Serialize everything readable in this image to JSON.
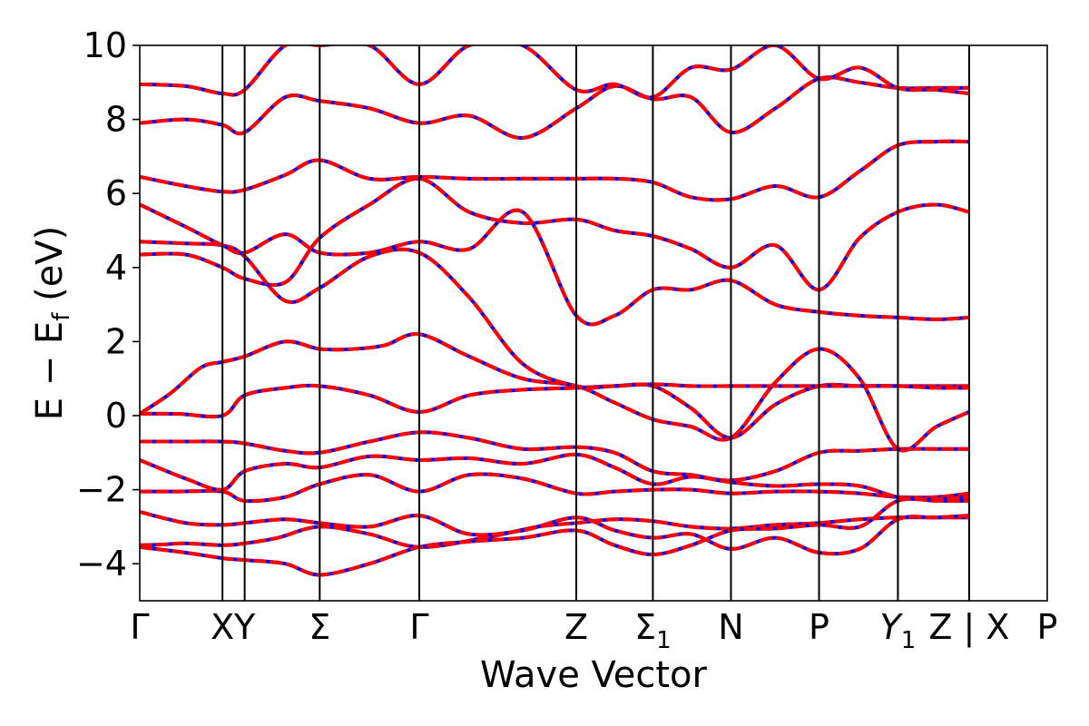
{
  "chart_data": {
    "type": "line",
    "xlabel": "Wave Vector",
    "ylabel": "E − E",
    "ylabel_sub": "f",
    "ylabel_unit": " (eV)",
    "ylim": [
      -5,
      10
    ],
    "yticks": [
      -4,
      -2,
      0,
      2,
      4,
      6,
      8,
      10
    ],
    "ytick_labels": [
      "−4",
      "−2",
      "0",
      "2",
      "4",
      "6",
      "8",
      "10"
    ],
    "grid": false,
    "colors": {
      "solid": "#ff0000",
      "dashed": "#0000ff"
    },
    "kpoints": [
      {
        "pos": 0,
        "label": "Γ",
        "sub": ""
      },
      {
        "pos": 1.08,
        "label": "X",
        "sub": ""
      },
      {
        "pos": 1.37,
        "label": "Y",
        "sub": ""
      },
      {
        "pos": 2.35,
        "label": "Σ",
        "sub": ""
      },
      {
        "pos": 3.65,
        "label": "Γ",
        "sub": ""
      },
      {
        "pos": 5.7,
        "label": "Z",
        "sub": ""
      },
      {
        "pos": 6.7,
        "label": "Σ",
        "sub": "1"
      },
      {
        "pos": 7.72,
        "label": "N",
        "sub": ""
      },
      {
        "pos": 8.87,
        "label": "P",
        "sub": ""
      },
      {
        "pos": 9.9,
        "label": "Y",
        "sub": "1",
        "italic": true
      },
      {
        "pos": 10.83,
        "label": "Z | X",
        "sub": ""
      },
      {
        "pos": 11.85,
        "label": "P",
        "sub": ""
      }
    ],
    "xlim": [
      0,
      11.85
    ],
    "series": [
      {
        "x": [
          0,
          0.3,
          0.6,
          1.08,
          1.37,
          1.8,
          2.35,
          3.0,
          3.65,
          4.5,
          5.2,
          5.7,
          6.2,
          6.7,
          7.2,
          7.72,
          8.3,
          8.87,
          9.4,
          9.9,
          10.4,
          10.83
        ],
        "y": [
          -3.5,
          -3.48,
          -3.45,
          -3.5,
          -3.45,
          -3.3,
          -3.0,
          -3.2,
          -3.55,
          -3.3,
          -3.0,
          -2.9,
          -2.8,
          -2.85,
          -3.0,
          -3.05,
          -2.95,
          -2.9,
          -2.8,
          -2.75,
          -2.75,
          -2.75
        ]
      },
      {
        "x": [
          0,
          0.5,
          1.08,
          1.37,
          1.9,
          2.35,
          3.0,
          3.65,
          4.3,
          5.0,
          5.7,
          6.2,
          6.7,
          7.2,
          7.72,
          8.3,
          8.87,
          9.4,
          9.9,
          10.4,
          10.83
        ],
        "y": [
          -2.05,
          -2.05,
          -2.05,
          -2.3,
          -2.2,
          -1.85,
          -1.6,
          -2.05,
          -1.6,
          -1.7,
          -2.1,
          -2.05,
          -2.0,
          -2.0,
          -2.1,
          -2.05,
          -2.05,
          -2.1,
          -2.2,
          -2.2,
          -2.1
        ]
      },
      {
        "x": [
          0,
          0.5,
          1.08,
          1.37,
          1.9,
          2.35,
          3.0,
          3.65,
          4.3,
          5.0,
          5.7,
          6.2,
          6.7,
          7.2,
          7.72,
          8.3,
          8.87,
          9.4,
          9.9,
          10.4,
          10.83
        ],
        "y": [
          -0.7,
          -0.7,
          -0.7,
          -0.75,
          -0.95,
          -1.0,
          -0.7,
          -0.45,
          -0.6,
          -0.9,
          -0.85,
          -1.0,
          -1.5,
          -1.6,
          -1.75,
          -1.5,
          -1.0,
          -0.95,
          -0.9,
          -0.9,
          -0.9
        ]
      },
      {
        "x": [
          0,
          0.5,
          1.08,
          1.37,
          1.9,
          2.35,
          3.0,
          3.65,
          4.3,
          5.0,
          5.7,
          6.2,
          6.7,
          7.2,
          7.72,
          8.3,
          8.87,
          9.4,
          9.9,
          10.4,
          10.83
        ],
        "y": [
          0.05,
          0.05,
          0.0,
          0.55,
          0.75,
          0.8,
          0.55,
          0.1,
          0.55,
          0.7,
          0.75,
          0.8,
          0.8,
          0.2,
          -0.6,
          0.3,
          0.8,
          0.8,
          0.8,
          0.8,
          0.8
        ]
      },
      {
        "x": [
          0,
          0.4,
          0.8,
          1.08,
          1.37,
          1.9,
          2.35,
          2.8,
          3.2,
          3.65,
          4.3,
          5.0,
          5.7,
          6.2,
          6.7,
          7.2,
          7.72,
          8.3,
          8.87,
          9.4,
          9.9,
          10.4,
          10.83
        ],
        "y": [
          0.05,
          0.6,
          1.3,
          1.45,
          1.6,
          2.0,
          1.8,
          1.8,
          1.9,
          2.2,
          1.6,
          1.0,
          0.8,
          0.35,
          -0.1,
          -0.3,
          -0.6,
          0.9,
          1.8,
          1.0,
          -0.9,
          -0.3,
          0.1
        ]
      },
      {
        "x": [
          0,
          0.6,
          1.08,
          1.37,
          1.9,
          2.35,
          3.0,
          3.65,
          4.3,
          5.0,
          5.7,
          6.2,
          6.7,
          7.2,
          7.72,
          8.3,
          8.87,
          9.4,
          9.9,
          10.4,
          10.83
        ],
        "y": [
          4.35,
          4.35,
          4.0,
          3.7,
          3.6,
          4.8,
          5.7,
          6.4,
          5.5,
          5.2,
          5.3,
          5.0,
          4.85,
          4.5,
          4.0,
          4.6,
          3.4,
          4.8,
          5.5,
          5.7,
          5.5
        ]
      },
      {
        "x": [
          0,
          0.6,
          1.08,
          1.37,
          1.9,
          2.35,
          3.0,
          3.65,
          4.3,
          5.0,
          5.7,
          6.2,
          6.7,
          7.2,
          7.72,
          8.3,
          8.87,
          9.4,
          9.9,
          10.4,
          10.83
        ],
        "y": [
          4.7,
          4.65,
          4.6,
          4.3,
          3.1,
          3.45,
          4.3,
          4.4,
          3.2,
          1.4,
          0.8,
          0.8,
          0.85,
          0.8,
          0.8,
          0.8,
          0.8,
          0.8,
          0.8,
          0.75,
          0.75
        ]
      },
      {
        "x": [
          0,
          0.6,
          1.08,
          1.37,
          1.9,
          2.35,
          3.0,
          3.65,
          4.3,
          5.0,
          5.7,
          6.2,
          6.7,
          7.2,
          7.72,
          8.3,
          8.87,
          9.4,
          9.9,
          10.4,
          10.83
        ],
        "y": [
          6.45,
          6.2,
          6.05,
          6.1,
          6.5,
          6.9,
          6.4,
          6.45,
          6.4,
          6.4,
          6.4,
          6.4,
          6.3,
          5.9,
          5.85,
          6.2,
          5.9,
          6.6,
          7.3,
          7.4,
          7.4
        ]
      },
      {
        "x": [
          0,
          0.6,
          1.08,
          1.37,
          1.9,
          2.35,
          3.0,
          3.65,
          4.3,
          5.0,
          5.7,
          6.2,
          6.7,
          7.2,
          7.72,
          8.3,
          8.87,
          9.4,
          9.9,
          10.4,
          10.83
        ],
        "y": [
          7.9,
          8.0,
          7.85,
          7.65,
          8.6,
          8.5,
          8.3,
          7.9,
          8.1,
          7.5,
          8.3,
          8.9,
          8.55,
          8.6,
          7.65,
          8.3,
          9.1,
          9.0,
          8.85,
          8.85,
          8.85
        ]
      },
      {
        "x": [
          0,
          0.6,
          1.08,
          1.37,
          1.9,
          2.35,
          3.0,
          3.65,
          4.3,
          5.0,
          5.7,
          6.2,
          6.7,
          7.2,
          7.72,
          8.3,
          8.87,
          9.4,
          9.9,
          10.4,
          10.83
        ],
        "y": [
          8.95,
          8.9,
          8.7,
          8.8,
          10.0,
          10.0,
          10.0,
          8.95,
          10.0,
          10.0,
          8.8,
          8.95,
          8.6,
          9.4,
          9.35,
          10.0,
          9.1,
          9.4,
          8.85,
          8.8,
          8.7
        ]
      },
      {
        "x": [
          0,
          0.6,
          1.08,
          1.37,
          1.9,
          2.35,
          3.0,
          3.65,
          4.3,
          5.0,
          5.7,
          6.2,
          6.7,
          7.2,
          7.72,
          8.3,
          8.87,
          9.4,
          9.9,
          10.4,
          10.83
        ],
        "y": [
          5.7,
          5.1,
          4.6,
          4.4,
          4.9,
          4.4,
          4.4,
          4.7,
          4.5,
          5.5,
          2.7,
          2.7,
          3.4,
          3.4,
          3.65,
          3.0,
          2.8,
          2.7,
          2.65,
          2.6,
          2.65
        ]
      },
      {
        "x": [
          0,
          0.6,
          1.08,
          1.37,
          1.9,
          2.35,
          3.0,
          3.65,
          4.3,
          5.0,
          5.7,
          6.2,
          6.7,
          7.2,
          7.72,
          8.3,
          8.87,
          9.4,
          9.9,
          10.4,
          10.83
        ],
        "y": [
          -1.2,
          -1.7,
          -2.0,
          -1.5,
          -1.3,
          -1.4,
          -1.1,
          -1.2,
          -1.15,
          -1.3,
          -1.05,
          -1.4,
          -1.85,
          -1.65,
          -1.8,
          -1.9,
          -1.85,
          -1.9,
          -2.2,
          -2.25,
          -2.2
        ]
      },
      {
        "x": [
          0,
          0.6,
          1.08,
          1.37,
          1.9,
          2.35,
          3.0,
          3.65,
          4.3,
          5.0,
          5.7,
          6.2,
          6.7,
          7.2,
          7.72,
          8.3,
          8.87,
          9.4,
          9.9,
          10.4,
          10.83
        ],
        "y": [
          -2.6,
          -2.9,
          -2.95,
          -2.9,
          -2.8,
          -2.9,
          -3.0,
          -2.7,
          -3.2,
          -3.1,
          -2.75,
          -3.1,
          -3.3,
          -3.2,
          -3.6,
          -3.3,
          -3.7,
          -3.6,
          -2.8,
          -2.75,
          -2.7
        ]
      },
      {
        "x": [
          0,
          0.6,
          1.08,
          1.37,
          1.9,
          2.35,
          3.0,
          3.65,
          4.3,
          5.0,
          5.7,
          6.2,
          6.7,
          7.2,
          7.72,
          8.3,
          8.87,
          9.4,
          9.9,
          10.4,
          10.83
        ],
        "y": [
          -3.55,
          -3.7,
          -3.85,
          -3.9,
          -4.0,
          -4.3,
          -4.0,
          -3.55,
          -3.4,
          -3.3,
          -3.1,
          -3.5,
          -3.75,
          -3.5,
          -3.1,
          -3.05,
          -2.95,
          -3.0,
          -2.3,
          -2.3,
          -2.3
        ]
      }
    ]
  }
}
